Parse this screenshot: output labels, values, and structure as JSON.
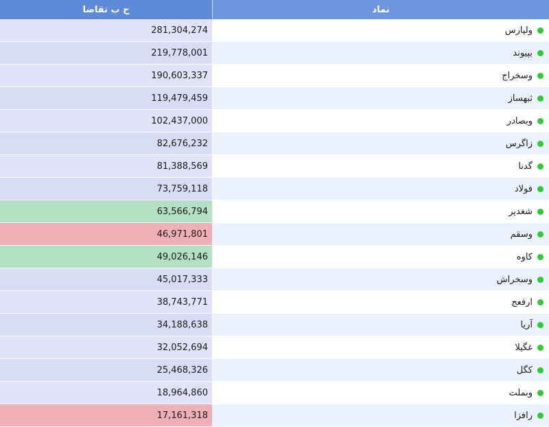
{
  "header": {
    "value_label": "ح ب تقاضا",
    "symbol_label": "نماد"
  },
  "colors": {
    "value_default": "#e2e2fa",
    "value_alt": "#d8dcf7",
    "value_green": "#b3dfc2",
    "value_red": "#eeafb6",
    "symbol_white": "#ffffff",
    "symbol_alt": "#ebf2fd",
    "status_dot": "#2ecc2e"
  },
  "rows": [
    {
      "symbol": "ولپارس",
      "value": "281,304,274",
      "highlight": "default"
    },
    {
      "symbol": "بپیوند",
      "value": "219,778,001",
      "highlight": "default"
    },
    {
      "symbol": "وسخراج",
      "value": "190,603,337",
      "highlight": "default"
    },
    {
      "symbol": "ثبهساز",
      "value": "119,479,459",
      "highlight": "default"
    },
    {
      "symbol": "وبصادر",
      "value": "102,437,000",
      "highlight": "default"
    },
    {
      "symbol": "زاگرس",
      "value": "82,676,232",
      "highlight": "default"
    },
    {
      "symbol": "گدنا",
      "value": "81,388,569",
      "highlight": "default"
    },
    {
      "symbol": "فولاد",
      "value": "73,759,118",
      "highlight": "default"
    },
    {
      "symbol": "شغدیر",
      "value": "63,566,794",
      "highlight": "green"
    },
    {
      "symbol": "وسقم",
      "value": "46,971,801",
      "highlight": "red"
    },
    {
      "symbol": "کاوه",
      "value": "49,026,146",
      "highlight": "green"
    },
    {
      "symbol": "وسخراش",
      "value": "45,017,333",
      "highlight": "default"
    },
    {
      "symbol": "ارفعج",
      "value": "38,743,771",
      "highlight": "default"
    },
    {
      "symbol": "آریا",
      "value": "34,188,638",
      "highlight": "default"
    },
    {
      "symbol": "غگیلا",
      "value": "32,052,694",
      "highlight": "default"
    },
    {
      "symbol": "کگل",
      "value": "25,468,326",
      "highlight": "default"
    },
    {
      "symbol": "وبملت",
      "value": "18,964,860",
      "highlight": "default"
    },
    {
      "symbol": "رافزا",
      "value": "17,161,318",
      "highlight": "red"
    }
  ]
}
